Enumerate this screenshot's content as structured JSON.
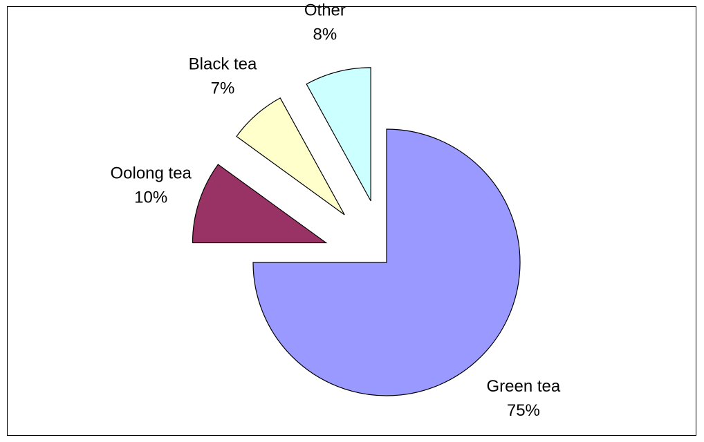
{
  "chart_data": {
    "type": "pie",
    "categories": [
      "Green tea",
      "Oolong tea",
      "Black tea",
      "Other"
    ],
    "values": [
      75,
      10,
      7,
      8
    ],
    "value_labels": [
      "75%",
      "10%",
      "7%",
      "8%"
    ],
    "colors": [
      "#9999ff",
      "#993366",
      "#ffffcc",
      "#ccffff"
    ]
  }
}
